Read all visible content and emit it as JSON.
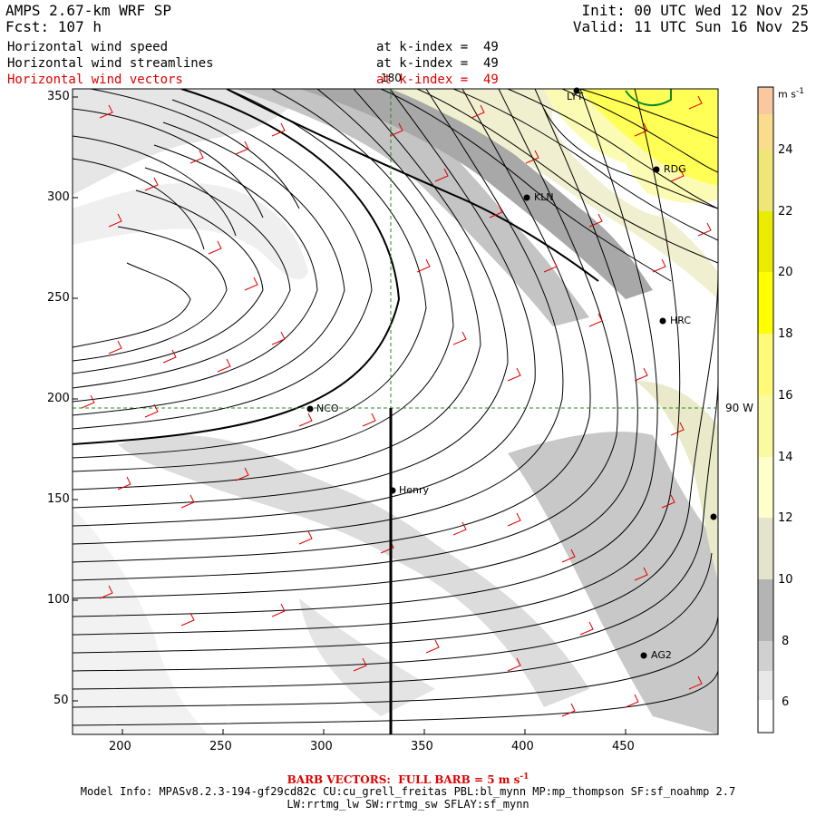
{
  "header": {
    "title": "AMPS 2.67-km WRF SP",
    "forecast": "Fcst: 107 h",
    "init": "Init: 00 UTC Wed 12 Nov 25",
    "valid": "Valid: 11 UTC Sun 16 Nov 25"
  },
  "fields": [
    {
      "name": "Horizontal wind speed",
      "level": "at k-index =  49",
      "color": "#000000"
    },
    {
      "name": "Horizontal wind streamlines",
      "level": "at k-index =  49",
      "color": "#000000"
    },
    {
      "name": "Horizontal wind vectors",
      "level": "at k-index =  49",
      "color": "#e00000"
    }
  ],
  "map": {
    "x_ticks": [
      "200",
      "250",
      "300",
      "350",
      "400",
      "450"
    ],
    "y_ticks": [
      "350",
      "300",
      "250",
      "200",
      "150",
      "100",
      "50"
    ],
    "meridian_label": "180",
    "parallel_label": "90 W",
    "stations": [
      "LYT",
      "RDG",
      "KLN",
      "HRC",
      "NCO",
      "Henry",
      "AG2"
    ]
  },
  "colorbar": {
    "units": "m s",
    "units_exp": "-1",
    "labels": [
      "24",
      "22",
      "20",
      "18",
      "16",
      "14",
      "12",
      "10",
      "8",
      "6"
    ],
    "colors": [
      "#ffffff",
      "#e8e8e8",
      "#d0d0d0",
      "#b4b4b4",
      "#e4e4cc",
      "#ffffcc",
      "#fafaa0",
      "#fffa78",
      "#ffff00",
      "#ebeb00",
      "#f0e678",
      "#fadc8c",
      "#fac8a0"
    ]
  },
  "footer": {
    "barb": "BARB VECTORS:  FULL BARB = 5 m s",
    "barb_exp": "-1",
    "model_info": "Model Info: MPASv8.2.3-194-gf29cd82c CU:cu_grell_freitas PBL:bl_mynn MP:mp_thompson SF:sf_noahmp 2.7",
    "model_info2": "LW:rrtmg_lw SW:rrtmg_sw SFLAY:sf_mynn"
  }
}
